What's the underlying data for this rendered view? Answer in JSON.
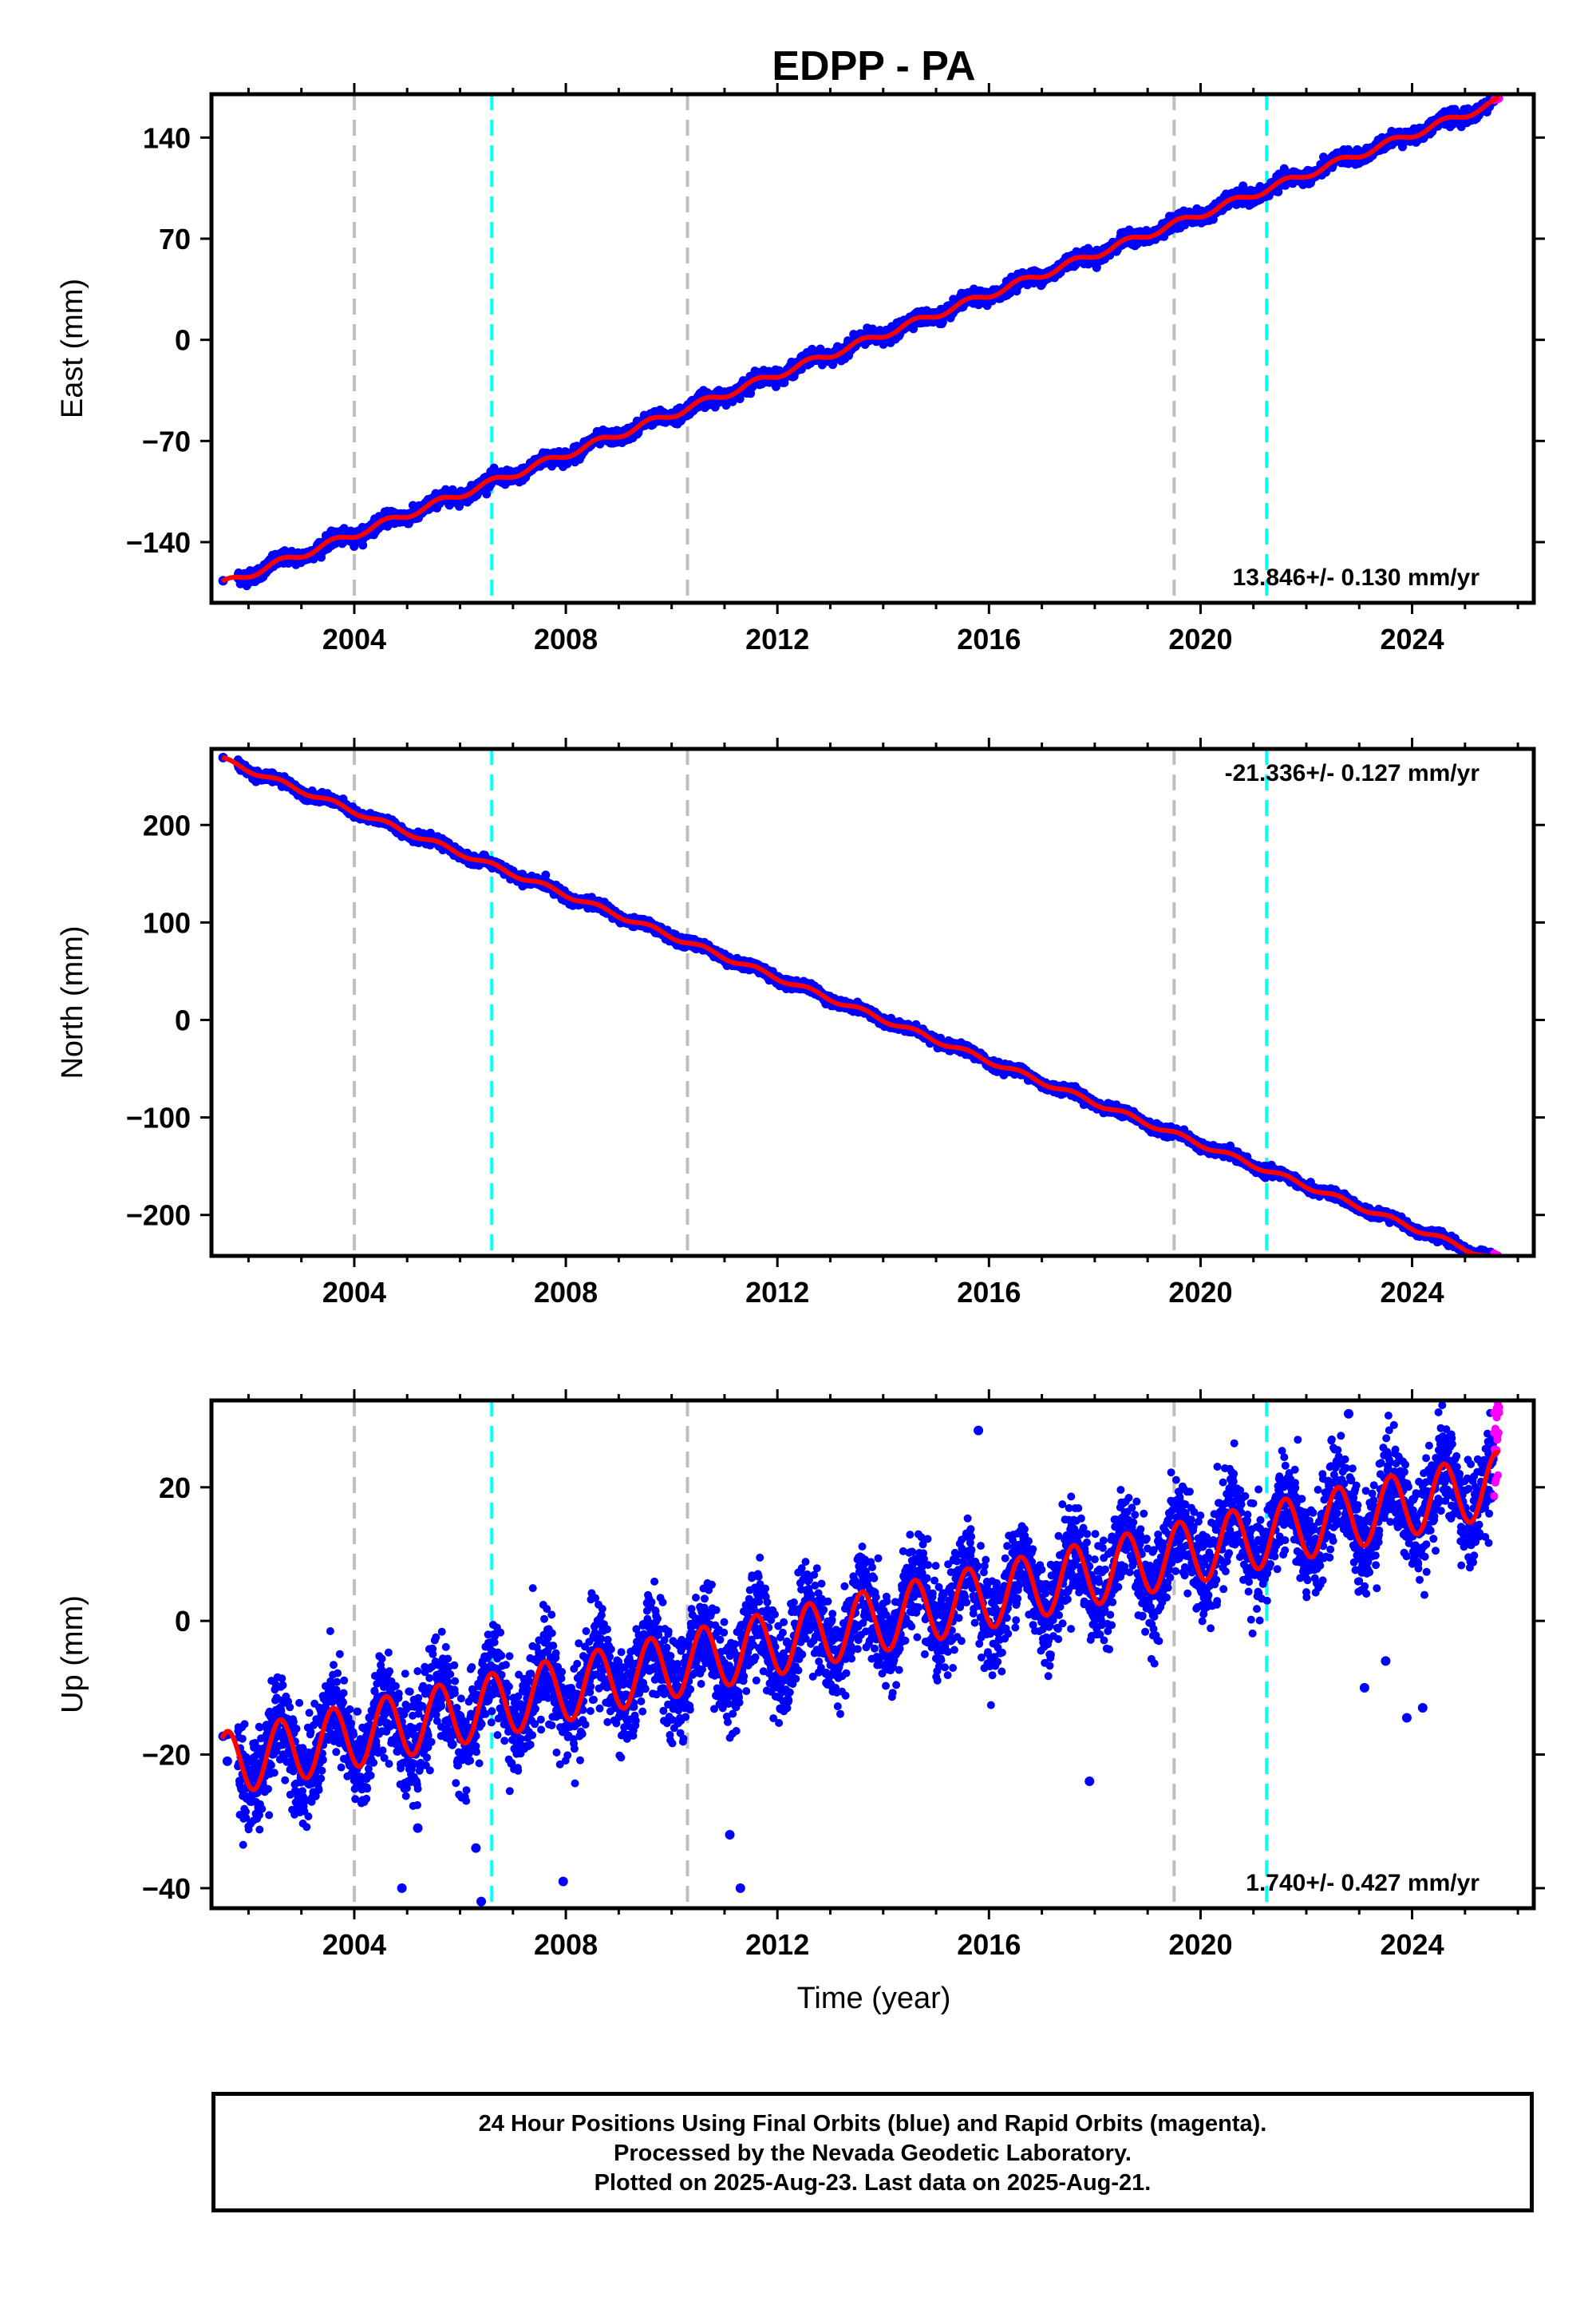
{
  "title": "EDPP - PA",
  "xlabel": "Time (year)",
  "footer": {
    "line1": "24 Hour Positions Using Final Orbits (blue) and Rapid Orbits (magenta).",
    "line2": "Processed by the Nevada Geodetic Laboratory.",
    "line3": "Plotted on 2025-Aug-23. Last data on 2025-Aug-21."
  },
  "colors": {
    "final": "#0000ff",
    "rapid": "#ff00ff",
    "model": "#ff0000",
    "equipment_change": "#c0c0c0",
    "earthquake": "#00ffff"
  },
  "chart_data": [
    {
      "type": "scatter",
      "ylabel": "East (mm)",
      "xlim": [
        2001.3,
        2026.3
      ],
      "ylim": [
        -182,
        170
      ],
      "xticks": [
        2004,
        2008,
        2012,
        2016,
        2020,
        2024
      ],
      "yticks": [
        140,
        70,
        0,
        -70,
        -140
      ],
      "rate_text": "13.846+/- 0.130 mm/yr",
      "rate": 13.846,
      "intercept_at_2013": -10,
      "scatter_sd": 2.2,
      "seasonal_amp": 2.5,
      "vlines_gray": [
        2004.0,
        2010.3,
        2019.5
      ],
      "vlines_cyan": [
        2006.6,
        2021.25
      ],
      "x_start": 2001.5,
      "x_end": 2025.65,
      "rapid_from": 2025.55
    },
    {
      "type": "scatter",
      "ylabel": "North (mm)",
      "xlim": [
        2001.3,
        2026.3
      ],
      "ylim": [
        -242,
        278
      ],
      "xticks": [
        2004,
        2008,
        2012,
        2016,
        2020,
        2024
      ],
      "yticks": [
        200,
        100,
        0,
        -100,
        -200
      ],
      "rate_text": "-21.336+/- 0.127 mm/yr",
      "rate": -21.336,
      "intercept_at_2013": 22,
      "scatter_sd": 2.2,
      "seasonal_amp": 2.5,
      "vlines_gray": [
        2004.0,
        2010.3,
        2019.5
      ],
      "vlines_cyan": [
        2006.6,
        2021.25
      ],
      "x_start": 2001.5,
      "x_end": 2025.65,
      "rapid_from": 2025.55
    },
    {
      "type": "scatter",
      "ylabel": "Up (mm)",
      "xlim": [
        2001.3,
        2026.3
      ],
      "ylim": [
        -43,
        33
      ],
      "xticks": [
        2004,
        2008,
        2012,
        2016,
        2020,
        2024
      ],
      "yticks": [
        20,
        0,
        -20,
        -40
      ],
      "rate_text": "1.740+/- 0.427 mm/yr",
      "rate": 1.74,
      "intercept_at_2013": -1.5,
      "scatter_sd": 3.6,
      "seasonal_amp": 4.8,
      "vlines_gray": [
        2004.0,
        2010.3,
        2019.5
      ],
      "vlines_cyan": [
        2006.6,
        2021.25
      ],
      "x_start": 2001.5,
      "x_end": 2025.65,
      "rapid_from": 2025.55,
      "outliers": [
        [
          2001.6,
          -17
        ],
        [
          2001.6,
          -21
        ],
        [
          2002.2,
          -28
        ],
        [
          2004.9,
          -40
        ],
        [
          2005.2,
          -31
        ],
        [
          2006.3,
          -34
        ],
        [
          2006.4,
          -42
        ],
        [
          2007.95,
          -39
        ],
        [
          2011.1,
          -32
        ],
        [
          2011.3,
          -40
        ],
        [
          2015.8,
          28.5
        ],
        [
          2017.9,
          -24
        ],
        [
          2022.8,
          31
        ],
        [
          2023.1,
          -10
        ],
        [
          2023.5,
          -6
        ],
        [
          2023.9,
          -14.5
        ],
        [
          2024.2,
          -13
        ]
      ]
    }
  ]
}
